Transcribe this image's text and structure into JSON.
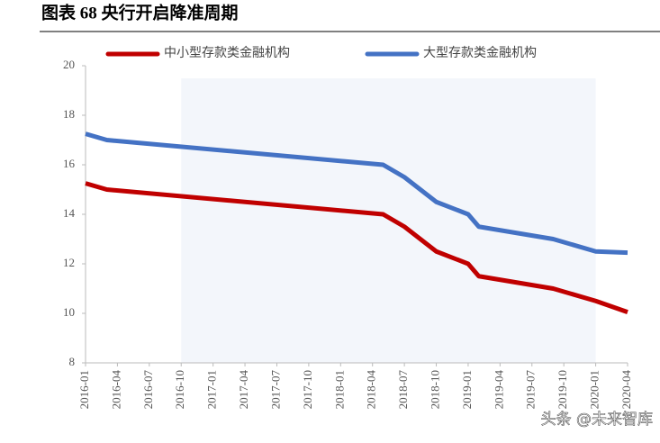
{
  "chart_data": {
    "type": "line",
    "title": "图表 68  央行开启降准周期",
    "x": [
      "2016-01",
      "2016-03",
      "2018-05",
      "2018-07",
      "2018-10",
      "2019-01",
      "2019-02",
      "2019-09",
      "2020-01",
      "2020-04"
    ],
    "series": [
      {
        "name": "中小型存款类金融机构",
        "color": "#c00000",
        "values": [
          15.25,
          15.0,
          14.0,
          13.5,
          12.5,
          12.0,
          11.5,
          11.0,
          10.5,
          10.05
        ]
      },
      {
        "name": "大型存款类金融机构",
        "color": "#4472c4",
        "values": [
          17.25,
          17.0,
          16.0,
          15.5,
          14.5,
          14.0,
          13.5,
          13.0,
          12.5,
          12.45
        ]
      }
    ],
    "xlim": [
      "2016-01",
      "2020-04"
    ],
    "xticks": [
      "2016-01",
      "2016-04",
      "2016-07",
      "2016-10",
      "2017-01",
      "2017-04",
      "2017-07",
      "2017-10",
      "2018-01",
      "2018-04",
      "2018-07",
      "2018-10",
      "2019-01",
      "2019-04",
      "2019-07",
      "2019-10",
      "2020-01",
      "2020-04"
    ],
    "ylim": [
      8,
      20
    ],
    "yticks": [
      8,
      10,
      12,
      14,
      16,
      18,
      20
    ],
    "shade": [
      "2016-10",
      "2020-01"
    ],
    "shade_color": "#f3f6fb",
    "watermark": "头条 @未来智库"
  }
}
